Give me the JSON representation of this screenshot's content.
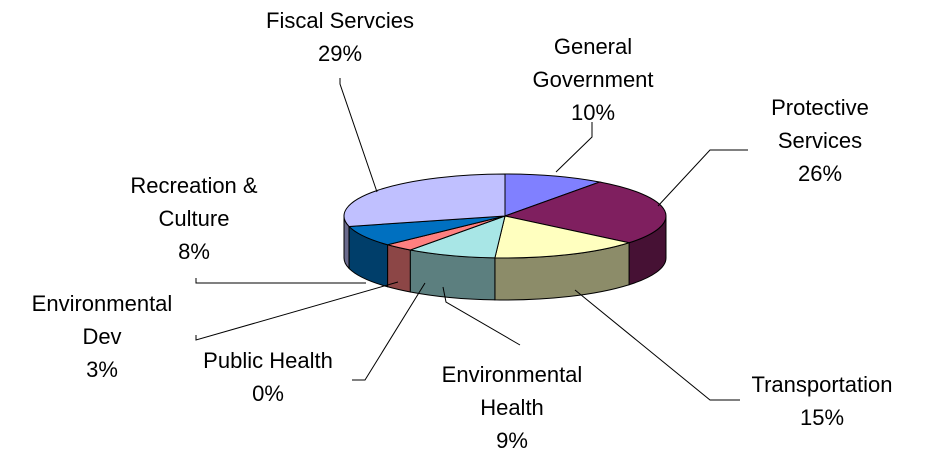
{
  "chart_data": {
    "type": "pie",
    "title": "",
    "series": [
      {
        "name": "",
        "values": [
          10,
          26,
          15,
          9,
          0,
          3,
          8,
          29
        ]
      }
    ],
    "categories": [
      "General Government",
      "Protective Services",
      "Transportation",
      "Environmental Health",
      "Public Health",
      "Environmental Dev",
      "Recreation & Culture",
      "Fiscal Servcies"
    ],
    "slices": [
      {
        "name": "General Government",
        "value": 10,
        "color": "#8080ff"
      },
      {
        "name": "Protective Services",
        "value": 26,
        "color": "#7f1f5f"
      },
      {
        "name": "Transportation",
        "value": 15,
        "color": "#ffffbf"
      },
      {
        "name": "Environmental Health",
        "value": 9,
        "color": "#a8e6e6"
      },
      {
        "name": "Public Health",
        "value": 0,
        "color": "#ff8080"
      },
      {
        "name": "Environmental Dev",
        "value": 3,
        "color": "#ff8080"
      },
      {
        "name": "Recreation & Culture",
        "value": 8,
        "color": "#0070c0"
      },
      {
        "name": "Fiscal Servcies",
        "value": 29,
        "color": "#c0c0ff"
      }
    ],
    "labels": [
      {
        "lines": [
          "General",
          "Government",
          "10%"
        ]
      },
      {
        "lines": [
          "Protective",
          "Services",
          "26%"
        ]
      },
      {
        "lines": [
          "Transportation",
          "15%"
        ]
      },
      {
        "lines": [
          "Environmental",
          "Health",
          "9%"
        ]
      },
      {
        "lines": [
          "Public Health",
          "0%"
        ]
      },
      {
        "lines": [
          "Environmental",
          "Dev",
          "3%"
        ]
      },
      {
        "lines": [
          "Recreation &",
          "Culture",
          "8%"
        ]
      },
      {
        "lines": [
          "Fiscal Servcies",
          "29%"
        ]
      }
    ],
    "legend": "none"
  }
}
